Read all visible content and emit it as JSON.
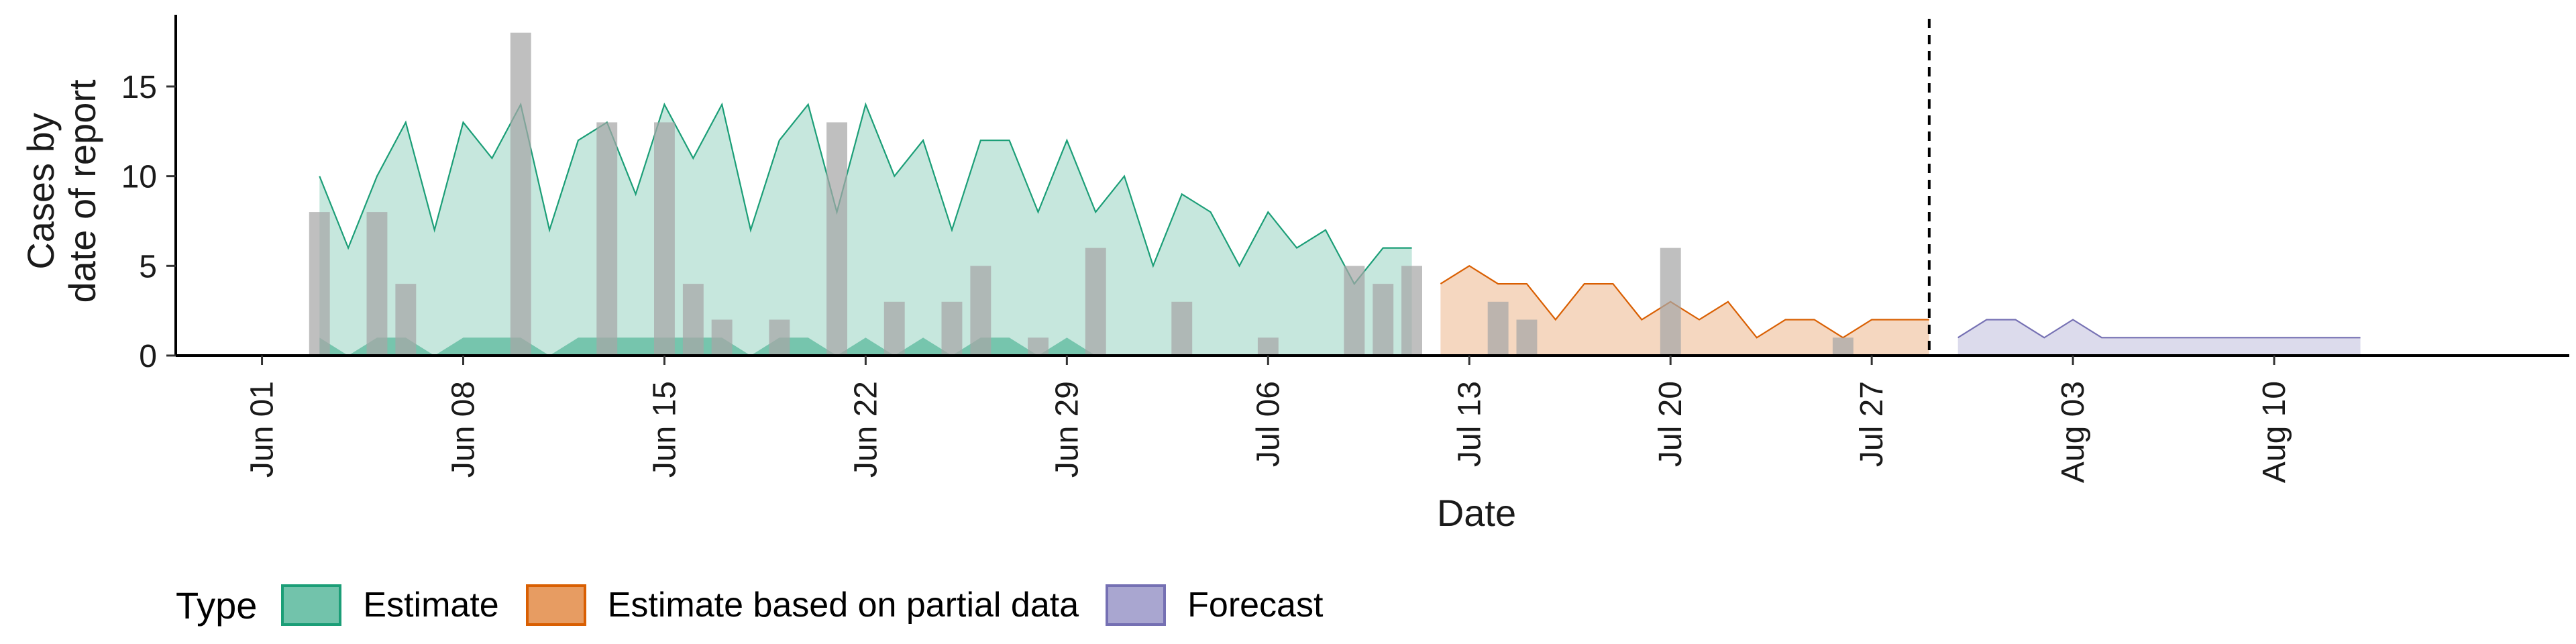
{
  "chart_data": {
    "type": "area",
    "xlabel": "Date",
    "ylabel_lines": [
      "Cases by",
      "date of report"
    ],
    "ylim": [
      0,
      19
    ],
    "yticks": [
      0,
      5,
      10,
      15
    ],
    "x_start": "2020-05-29",
    "x_end": "2020-08-17",
    "xticks": [
      {
        "date": "2020-06-01",
        "label": "Jun 01"
      },
      {
        "date": "2020-06-08",
        "label": "Jun 08"
      },
      {
        "date": "2020-06-15",
        "label": "Jun 15"
      },
      {
        "date": "2020-06-22",
        "label": "Jun 22"
      },
      {
        "date": "2020-06-29",
        "label": "Jun 29"
      },
      {
        "date": "2020-07-06",
        "label": "Jul 06"
      },
      {
        "date": "2020-07-13",
        "label": "Jul 13"
      },
      {
        "date": "2020-07-20",
        "label": "Jul 20"
      },
      {
        "date": "2020-07-27",
        "label": "Jul 27"
      },
      {
        "date": "2020-08-03",
        "label": "Aug 03"
      },
      {
        "date": "2020-08-10",
        "label": "Aug 10"
      }
    ],
    "vline_date": "2020-07-29",
    "bar_color": "#a6a6a6",
    "reported_cases": [
      {
        "date": "2020-06-03",
        "value": 8
      },
      {
        "date": "2020-06-05",
        "value": 8
      },
      {
        "date": "2020-06-06",
        "value": 4
      },
      {
        "date": "2020-06-10",
        "value": 18
      },
      {
        "date": "2020-06-13",
        "value": 13
      },
      {
        "date": "2020-06-15",
        "value": 13
      },
      {
        "date": "2020-06-16",
        "value": 4
      },
      {
        "date": "2020-06-17",
        "value": 2
      },
      {
        "date": "2020-06-19",
        "value": 2
      },
      {
        "date": "2020-06-21",
        "value": 13
      },
      {
        "date": "2020-06-23",
        "value": 3
      },
      {
        "date": "2020-06-25",
        "value": 3
      },
      {
        "date": "2020-06-26",
        "value": 5
      },
      {
        "date": "2020-06-28",
        "value": 1
      },
      {
        "date": "2020-06-30",
        "value": 6
      },
      {
        "date": "2020-07-03",
        "value": 3
      },
      {
        "date": "2020-07-06",
        "value": 1
      },
      {
        "date": "2020-07-09",
        "value": 5
      },
      {
        "date": "2020-07-10",
        "value": 4
      },
      {
        "date": "2020-07-11",
        "value": 5
      },
      {
        "date": "2020-07-14",
        "value": 3
      },
      {
        "date": "2020-07-15",
        "value": 2
      },
      {
        "date": "2020-07-20",
        "value": 6
      },
      {
        "date": "2020-07-26",
        "value": 1
      }
    ],
    "series": [
      {
        "name": "Estimate",
        "fill": "#1b9e77",
        "line": "#1b9e77",
        "start": "2020-06-03",
        "upper": [
          10,
          6,
          10,
          13,
          7,
          13,
          11,
          14,
          7,
          12,
          13,
          9,
          14,
          11,
          14,
          7,
          12,
          14,
          8,
          14,
          10,
          12,
          7,
          12,
          12,
          8,
          12,
          8,
          10,
          5,
          9,
          8,
          5,
          8,
          6,
          7,
          4,
          6,
          6
        ],
        "lower": [
          1,
          0,
          1,
          1,
          0,
          1,
          1,
          1,
          0,
          1,
          1,
          1,
          1,
          1,
          1,
          0,
          1,
          1,
          0,
          1,
          0,
          1,
          0,
          1,
          1,
          0,
          1,
          0,
          0,
          0,
          0,
          0,
          0,
          0,
          0,
          0,
          0,
          0,
          0
        ]
      },
      {
        "name": "Estimate based on partial data",
        "fill": "#d95f02",
        "line": "#d95f02",
        "start": "2020-07-12",
        "upper": [
          4,
          5,
          4,
          4,
          2,
          4,
          4,
          2,
          3,
          2,
          3,
          1,
          2,
          2,
          1,
          2,
          2,
          2
        ],
        "lower": [
          0,
          0,
          0,
          0,
          0,
          0,
          0,
          0,
          0,
          0,
          0,
          0,
          0,
          0,
          0,
          0,
          0,
          0
        ]
      },
      {
        "name": "Forecast",
        "fill": "#7570b3",
        "line": "#7570b3",
        "start": "2020-07-30",
        "upper": [
          1,
          2,
          2,
          1,
          2,
          1,
          1,
          1,
          1,
          1,
          1,
          1,
          1,
          1,
          1
        ],
        "lower": [
          0,
          0,
          0,
          0,
          0,
          0,
          0,
          0,
          0,
          0,
          0,
          0,
          0,
          0,
          0
        ]
      }
    ]
  },
  "legend": {
    "title": "Type",
    "items": [
      {
        "label": "Estimate",
        "color": "#1b9e77"
      },
      {
        "label": "Estimate based on partial data",
        "color": "#d95f02"
      },
      {
        "label": "Forecast",
        "color": "#7570b3"
      }
    ]
  }
}
